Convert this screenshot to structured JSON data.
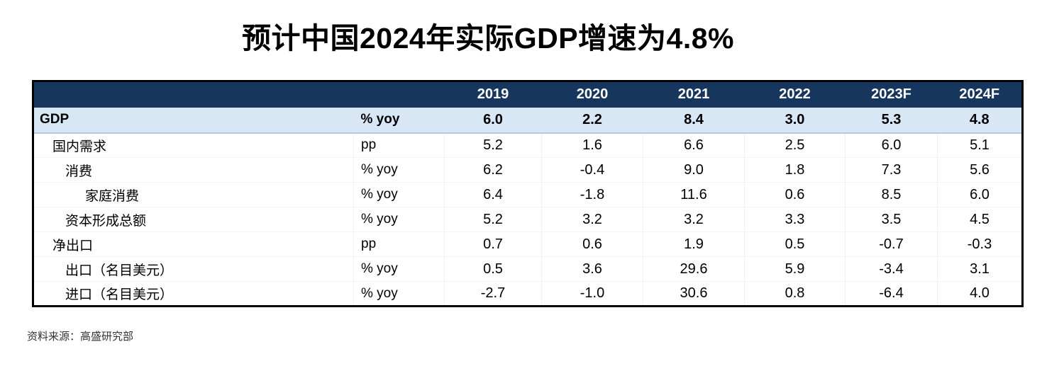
{
  "title": "预计中国2024年实际GDP增速为4.8%",
  "source_note": "资料来源：高盛研究部",
  "colors": {
    "header_bg": "#17365D",
    "header_text": "#ffffff",
    "highlight_row_bg": "#D8E7F6",
    "highlight_row_border": "#b3cbe2",
    "table_border": "#000000",
    "body_text": "#000000"
  },
  "chart_data": {
    "type": "table",
    "title": "预计中国2024年实际GDP增速为4.8%",
    "year_columns": [
      "2019",
      "2020",
      "2021",
      "2022",
      "2023F",
      "2024F"
    ],
    "rows": [
      {
        "label": "GDP",
        "unit": "% yoy",
        "indent": 0,
        "highlight": true,
        "values": [
          "6.0",
          "2.2",
          "8.4",
          "3.0",
          "5.3",
          "4.8"
        ]
      },
      {
        "label": "国内需求",
        "unit": "pp",
        "indent": 1,
        "highlight": false,
        "values": [
          "5.2",
          "1.6",
          "6.6",
          "2.5",
          "6.0",
          "5.1"
        ]
      },
      {
        "label": "消费",
        "unit": "% yoy",
        "indent": 2,
        "highlight": false,
        "values": [
          "6.2",
          "-0.4",
          "9.0",
          "1.8",
          "7.3",
          "5.6"
        ]
      },
      {
        "label": "家庭消费",
        "unit": "% yoy",
        "indent": 3,
        "highlight": false,
        "values": [
          "6.4",
          "-1.8",
          "11.6",
          "0.6",
          "8.5",
          "6.0"
        ]
      },
      {
        "label": "资本形成总额",
        "unit": "% yoy",
        "indent": 2,
        "highlight": false,
        "values": [
          "5.2",
          "3.2",
          "3.2",
          "3.3",
          "3.5",
          "4.5"
        ]
      },
      {
        "label": "净出口",
        "unit": "pp",
        "indent": 1,
        "highlight": false,
        "values": [
          "0.7",
          "0.6",
          "1.9",
          "0.5",
          "-0.7",
          "-0.3"
        ]
      },
      {
        "label": "出口（名目美元）",
        "unit": "% yoy",
        "indent": 2,
        "highlight": false,
        "values": [
          "0.5",
          "3.6",
          "29.6",
          "5.9",
          "-3.4",
          "3.1"
        ]
      },
      {
        "label": "进口（名目美元）",
        "unit": "% yoy",
        "indent": 2,
        "highlight": false,
        "values": [
          "-2.7",
          "-1.0",
          "30.6",
          "0.8",
          "-6.4",
          "4.0"
        ]
      }
    ],
    "layout": {
      "grid": "faint",
      "value_alignment": "center",
      "highlighted_row": "GDP"
    }
  }
}
